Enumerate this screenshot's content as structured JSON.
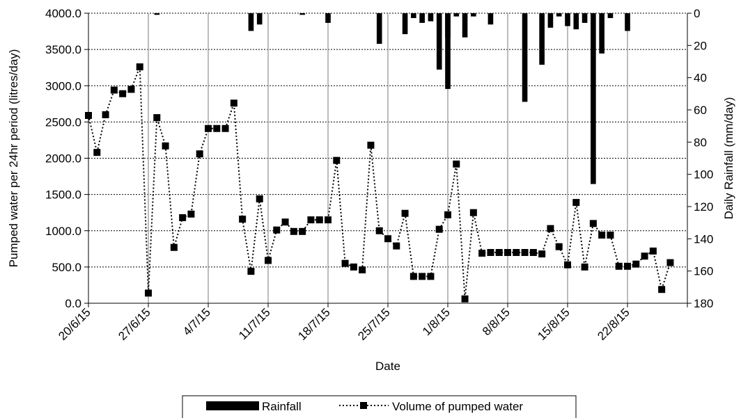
{
  "chart_data": {
    "type": "bar+line",
    "xlabel": "Date",
    "ylabel_left": "Pumped water per 24hr period  (litres/day)",
    "ylabel_right": "Daily Rainfall (mm/day)",
    "y_left": {
      "min": 0,
      "max": 4000,
      "step": 500,
      "ticks": [
        "0.0",
        "500.0",
        "1000.0",
        "1500.0",
        "2000.0",
        "2500.0",
        "3000.0",
        "3500.0",
        "4000.0"
      ]
    },
    "y_right": {
      "min": 0,
      "max": 180,
      "step": 20,
      "inverted": true,
      "ticks": [
        "0",
        "20",
        "40",
        "60",
        "80",
        "100",
        "120",
        "140",
        "160",
        "180"
      ]
    },
    "x_axis": {
      "start_date": "2015-06-20",
      "end_date": "2015-08-29",
      "tick_labels": [
        "20/6/15",
        "27/6/15",
        "4/7/15",
        "11/7/15",
        "18/7/15",
        "25/7/15",
        "1/8/15",
        "8/8/15",
        "15/8/15",
        "22/8/15"
      ]
    },
    "gridlines": {
      "horizontal": true,
      "vertical": true
    },
    "legend": {
      "position": "bottom",
      "entries": [
        "Rainfall",
        "Volume of pumped water"
      ]
    },
    "series": [
      {
        "name": "Volume of pumped water",
        "kind": "line",
        "style": "dotted-square-markers",
        "axis": "left",
        "points": [
          [
            "2015-06-20",
            2590
          ],
          [
            "2015-06-21",
            2080
          ],
          [
            "2015-06-22",
            2600
          ],
          [
            "2015-06-23",
            2940
          ],
          [
            "2015-06-24",
            2890
          ],
          [
            "2015-06-25",
            2950
          ],
          [
            "2015-06-26",
            3260
          ],
          [
            "2015-06-27",
            140
          ],
          [
            "2015-06-28",
            2560
          ],
          [
            "2015-06-29",
            2170
          ],
          [
            "2015-06-30",
            770
          ],
          [
            "2015-07-01",
            1180
          ],
          [
            "2015-07-02",
            1230
          ],
          [
            "2015-07-03",
            2060
          ],
          [
            "2015-07-04",
            2410
          ],
          [
            "2015-07-05",
            2410
          ],
          [
            "2015-07-06",
            2410
          ],
          [
            "2015-07-07",
            2760
          ],
          [
            "2015-07-08",
            1160
          ],
          [
            "2015-07-09",
            440
          ],
          [
            "2015-07-10",
            1440
          ],
          [
            "2015-07-11",
            590
          ],
          [
            "2015-07-12",
            1010
          ],
          [
            "2015-07-13",
            1120
          ],
          [
            "2015-07-14",
            990
          ],
          [
            "2015-07-15",
            990
          ],
          [
            "2015-07-16",
            1150
          ],
          [
            "2015-07-17",
            1150
          ],
          [
            "2015-07-18",
            1150
          ],
          [
            "2015-07-19",
            1970
          ],
          [
            "2015-07-20",
            550
          ],
          [
            "2015-07-21",
            500
          ],
          [
            "2015-07-22",
            460
          ],
          [
            "2015-07-23",
            2180
          ],
          [
            "2015-07-24",
            1000
          ],
          [
            "2015-07-25",
            890
          ],
          [
            "2015-07-26",
            790
          ],
          [
            "2015-07-27",
            1240
          ],
          [
            "2015-07-28",
            370
          ],
          [
            "2015-07-29",
            370
          ],
          [
            "2015-07-30",
            370
          ],
          [
            "2015-07-31",
            1020
          ],
          [
            "2015-08-01",
            1220
          ],
          [
            "2015-08-02",
            1920
          ],
          [
            "2015-08-03",
            60
          ],
          [
            "2015-08-04",
            1250
          ],
          [
            "2015-08-05",
            690
          ],
          [
            "2015-08-06",
            700
          ],
          [
            "2015-08-07",
            700
          ],
          [
            "2015-08-08",
            700
          ],
          [
            "2015-08-09",
            700
          ],
          [
            "2015-08-10",
            700
          ],
          [
            "2015-08-11",
            700
          ],
          [
            "2015-08-12",
            680
          ],
          [
            "2015-08-13",
            1030
          ],
          [
            "2015-08-14",
            780
          ],
          [
            "2015-08-15",
            530
          ],
          [
            "2015-08-16",
            1390
          ],
          [
            "2015-08-17",
            500
          ],
          [
            "2015-08-18",
            1100
          ],
          [
            "2015-08-19",
            940
          ],
          [
            "2015-08-20",
            940
          ],
          [
            "2015-08-21",
            510
          ],
          [
            "2015-08-22",
            510
          ],
          [
            "2015-08-23",
            540
          ],
          [
            "2015-08-24",
            650
          ],
          [
            "2015-08-25",
            720
          ],
          [
            "2015-08-26",
            190
          ],
          [
            "2015-08-27",
            560
          ]
        ]
      },
      {
        "name": "Rainfall",
        "kind": "bar",
        "axis": "right",
        "points": [
          [
            "2015-06-28",
            1
          ],
          [
            "2015-07-09",
            11
          ],
          [
            "2015-07-10",
            7
          ],
          [
            "2015-07-15",
            1
          ],
          [
            "2015-07-18",
            6
          ],
          [
            "2015-07-24",
            19
          ],
          [
            "2015-07-27",
            13
          ],
          [
            "2015-07-28",
            3
          ],
          [
            "2015-07-29",
            6
          ],
          [
            "2015-07-30",
            5
          ],
          [
            "2015-07-31",
            35
          ],
          [
            "2015-08-01",
            15
          ],
          [
            "2015-08-01",
            47
          ],
          [
            "2015-08-02",
            2
          ],
          [
            "2015-08-03",
            15
          ],
          [
            "2015-08-04",
            2
          ],
          [
            "2015-08-06",
            7
          ],
          [
            "2015-08-10",
            55
          ],
          [
            "2015-08-12",
            32
          ],
          [
            "2015-08-13",
            9
          ],
          [
            "2015-08-14",
            2
          ],
          [
            "2015-08-15",
            8
          ],
          [
            "2015-08-16",
            10
          ],
          [
            "2015-08-17",
            6
          ],
          [
            "2015-08-18",
            106
          ],
          [
            "2015-08-19",
            25
          ],
          [
            "2015-08-20",
            3
          ],
          [
            "2015-08-22",
            11
          ]
        ]
      }
    ]
  }
}
